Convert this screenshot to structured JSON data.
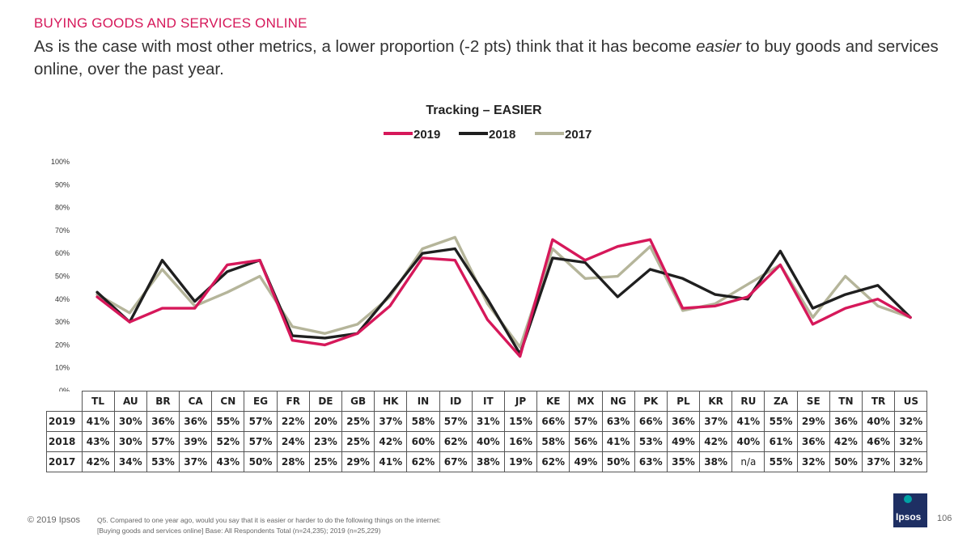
{
  "slide": {
    "kicker": "BUYING GOODS AND SERVICES ONLINE",
    "headline_pre": "As is the case with most other metrics, a lower proportion (-2 pts) think that it has become ",
    "headline_em": "easier",
    "headline_post": " to buy goods and services online, over the past year.",
    "footer_copyright": "© 2019 Ipsos",
    "footer_note_line1": "Q5. Compared to one year ago, would you say that it is easier or harder to do the following things on the internet:",
    "footer_note_line2": "[Buying goods and services online] Base: All Respondents Total (n=24,235); 2019 (n=25,229)",
    "page_number": "106",
    "logo_text": "Ipsos"
  },
  "colors": {
    "y2019": "#d6185a",
    "y2018": "#1f1f1f",
    "y2017": "#b5b59a",
    "kicker": "#d6185a"
  },
  "chart_data": {
    "type": "line",
    "title": "Tracking – EASIER",
    "ylim": [
      0,
      100
    ],
    "yticks": [
      "0%",
      "10%",
      "20%",
      "30%",
      "40%",
      "50%",
      "60%",
      "70%",
      "80%",
      "90%",
      "100%"
    ],
    "categories": [
      "TL",
      "AU",
      "BR",
      "CA",
      "CN",
      "EG",
      "FR",
      "DE",
      "GB",
      "HK",
      "IN",
      "ID",
      "IT",
      "JP",
      "KE",
      "MX",
      "NG",
      "PK",
      "PL",
      "KR",
      "RU",
      "ZA",
      "SE",
      "TN",
      "TR",
      "US"
    ],
    "series": [
      {
        "name": "2019",
        "key": "y2019",
        "values": [
          41,
          30,
          36,
          36,
          55,
          57,
          22,
          20,
          25,
          37,
          58,
          57,
          31,
          15,
          66,
          57,
          63,
          66,
          36,
          37,
          41,
          55,
          29,
          36,
          40,
          32
        ],
        "labels": [
          "41%",
          "30%",
          "36%",
          "36%",
          "55%",
          "57%",
          "22%",
          "20%",
          "25%",
          "37%",
          "58%",
          "57%",
          "31%",
          "15%",
          "66%",
          "57%",
          "63%",
          "66%",
          "36%",
          "37%",
          "41%",
          "55%",
          "29%",
          "36%",
          "40%",
          "32%"
        ]
      },
      {
        "name": "2018",
        "key": "y2018",
        "values": [
          43,
          30,
          57,
          39,
          52,
          57,
          24,
          23,
          25,
          42,
          60,
          62,
          40,
          16,
          58,
          56,
          41,
          53,
          49,
          42,
          40,
          61,
          36,
          42,
          46,
          32
        ],
        "labels": [
          "43%",
          "30%",
          "57%",
          "39%",
          "52%",
          "57%",
          "24%",
          "23%",
          "25%",
          "42%",
          "60%",
          "62%",
          "40%",
          "16%",
          "58%",
          "56%",
          "41%",
          "53%",
          "49%",
          "42%",
          "40%",
          "61%",
          "36%",
          "42%",
          "46%",
          "32%"
        ]
      },
      {
        "name": "2017",
        "key": "y2017",
        "values": [
          42,
          34,
          53,
          37,
          43,
          50,
          28,
          25,
          29,
          41,
          62,
          67,
          38,
          19,
          62,
          49,
          50,
          63,
          35,
          38,
          null,
          55,
          32,
          50,
          37,
          32
        ],
        "labels": [
          "42%",
          "34%",
          "53%",
          "37%",
          "43%",
          "50%",
          "28%",
          "25%",
          "29%",
          "41%",
          "62%",
          "67%",
          "38%",
          "19%",
          "62%",
          "49%",
          "50%",
          "63%",
          "35%",
          "38%",
          "n/a",
          "55%",
          "32%",
          "50%",
          "37%",
          "32%"
        ]
      }
    ]
  }
}
